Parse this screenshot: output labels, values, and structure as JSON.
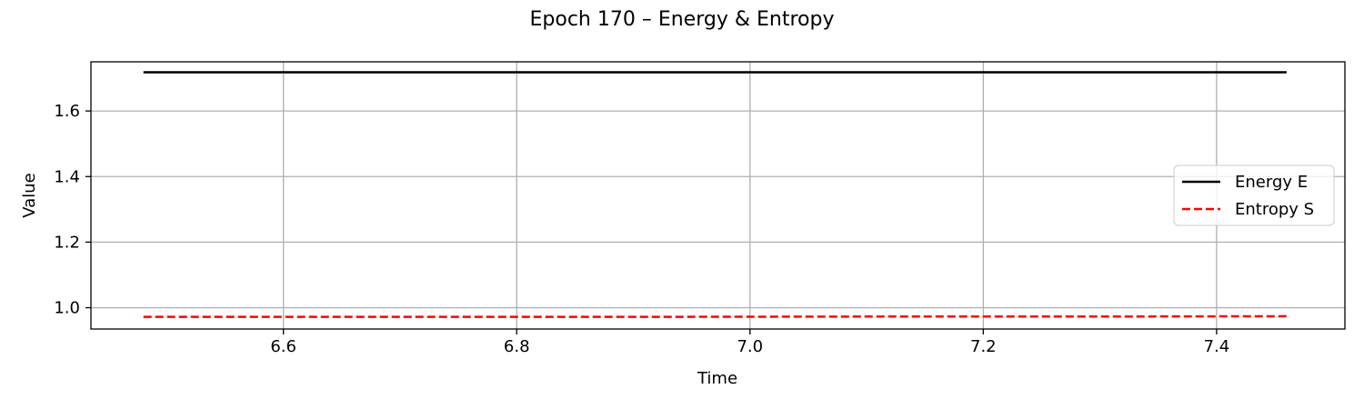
{
  "chart_data": {
    "type": "line",
    "title": "Epoch 170 – Energy & Entropy",
    "xlabel": "Time",
    "ylabel": "Value",
    "xlim": [
      6.435,
      7.51
    ],
    "ylim": [
      0.935,
      1.75
    ],
    "xticks": [
      6.6,
      6.8,
      7.0,
      7.2,
      7.4
    ],
    "xtick_labels": [
      "6.6",
      "6.8",
      "7.0",
      "7.2",
      "7.4"
    ],
    "yticks": [
      1.0,
      1.2,
      1.4,
      1.6
    ],
    "ytick_labels": [
      "1.0",
      "1.2",
      "1.4",
      "1.6"
    ],
    "grid": true,
    "legend_position": "center-right",
    "series": [
      {
        "name": "Energy E",
        "color": "#000000",
        "style": "solid",
        "x": [
          6.48,
          6.7,
          6.9,
          7.1,
          7.3,
          7.46
        ],
        "y": [
          1.718,
          1.718,
          1.718,
          1.718,
          1.718,
          1.718
        ]
      },
      {
        "name": "Entropy S",
        "color": "#ff0000",
        "style": "dashed",
        "x": [
          6.48,
          6.7,
          6.9,
          7.1,
          7.3,
          7.46
        ],
        "y": [
          0.972,
          0.972,
          0.972,
          0.973,
          0.973,
          0.974
        ]
      }
    ]
  }
}
